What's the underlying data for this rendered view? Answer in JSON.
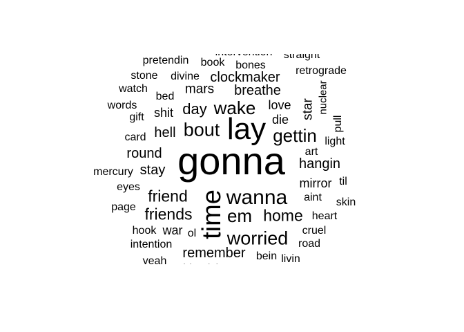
{
  "wordcloud": {
    "text_color": "#000000",
    "background": "#ffffff",
    "words": [
      {
        "text": "gonna",
        "size": 56
      },
      {
        "text": "lay",
        "size": 44
      },
      {
        "text": "time",
        "size": 38
      },
      {
        "text": "wanna",
        "size": 30
      },
      {
        "text": "worried",
        "size": 27
      },
      {
        "text": "bout",
        "size": 27
      },
      {
        "text": "gettin",
        "size": 26
      },
      {
        "text": "wake",
        "size": 26
      },
      {
        "text": "em",
        "size": 26
      },
      {
        "text": "friends",
        "size": 23
      },
      {
        "text": "friend",
        "size": 23
      },
      {
        "text": "home",
        "size": 23
      },
      {
        "text": "day",
        "size": 22
      },
      {
        "text": "clockmaker",
        "size": 20
      },
      {
        "text": "breathe",
        "size": 20
      },
      {
        "text": "mars",
        "size": 19
      },
      {
        "text": "remember",
        "size": 20
      },
      {
        "text": "hangin",
        "size": 20
      },
      {
        "text": "mirror",
        "size": 18
      },
      {
        "text": "round",
        "size": 20
      },
      {
        "text": "hell",
        "size": 20
      },
      {
        "text": "stay",
        "size": 20
      },
      {
        "text": "love",
        "size": 18
      },
      {
        "text": "die",
        "size": 18
      },
      {
        "text": "star",
        "size": 19
      },
      {
        "text": "shit",
        "size": 18
      },
      {
        "text": "war",
        "size": 18
      },
      {
        "text": "retrograde",
        "size": 16
      },
      {
        "text": "heart",
        "size": 16
      },
      {
        "text": "nuclear",
        "size": 15
      },
      {
        "text": "pretendin",
        "size": 16
      },
      {
        "text": "book",
        "size": 16
      },
      {
        "text": "bones",
        "size": 16
      },
      {
        "text": "stone",
        "size": 16
      },
      {
        "text": "divine",
        "size": 16
      },
      {
        "text": "watch",
        "size": 16
      },
      {
        "text": "bed",
        "size": 16
      },
      {
        "text": "words",
        "size": 16
      },
      {
        "text": "gift",
        "size": 16
      },
      {
        "text": "card",
        "size": 16
      },
      {
        "text": "mercury",
        "size": 16
      },
      {
        "text": "eyes",
        "size": 16
      },
      {
        "text": "page",
        "size": 16
      },
      {
        "text": "hook",
        "size": 16
      },
      {
        "text": "intention",
        "size": 16
      },
      {
        "text": "yeah",
        "size": 16
      },
      {
        "text": "cruel",
        "size": 16
      },
      {
        "text": "road",
        "size": 16
      },
      {
        "text": "bein",
        "size": 16
      },
      {
        "text": "livin",
        "size": 16
      },
      {
        "text": "aint",
        "size": 16
      },
      {
        "text": "skin",
        "size": 16
      },
      {
        "text": "til",
        "size": 16
      },
      {
        "text": "art",
        "size": 16
      },
      {
        "text": "light",
        "size": 16
      },
      {
        "text": "pull",
        "size": 16
      },
      {
        "text": "ol",
        "size": 16
      },
      {
        "text": "straight",
        "size": 16
      },
      {
        "text": "intervention",
        "size": 16
      },
      {
        "text": "bloodshot",
        "size": 16
      }
    ]
  }
}
